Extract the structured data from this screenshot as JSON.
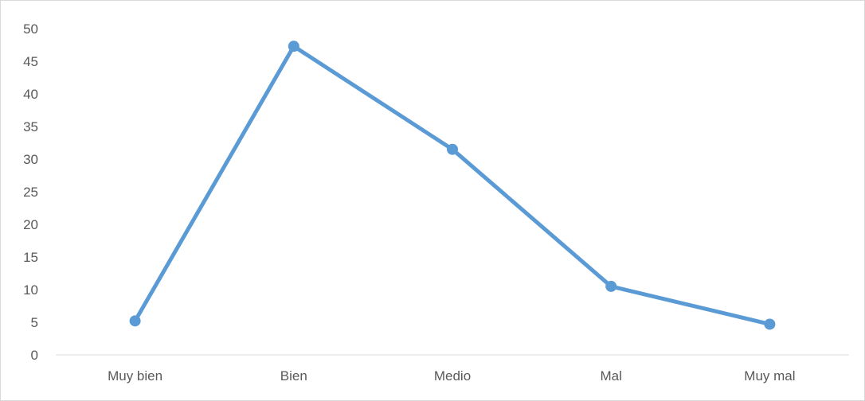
{
  "chart_data": {
    "type": "line",
    "title": "",
    "xlabel": "",
    "ylabel": "",
    "categories": [
      "Muy bien",
      "Bien",
      "Medio",
      "Mal",
      "Muy mal"
    ],
    "series": [
      {
        "values": [
          5.2,
          47.3,
          31.5,
          10.5,
          4.7
        ]
      }
    ],
    "ylim": [
      0,
      50
    ],
    "yticks": [
      "0",
      "5",
      "10",
      "15",
      "20",
      "25",
      "30",
      "35",
      "40",
      "45",
      "50"
    ],
    "grid": false,
    "legend": "none",
    "colors": {
      "line": "#5b9bd5",
      "axis": "#d9d9d9",
      "text": "#595959"
    }
  }
}
